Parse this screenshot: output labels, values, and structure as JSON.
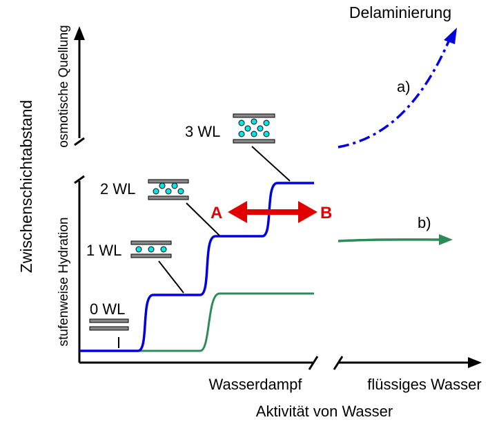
{
  "title_right": "Delaminierung",
  "curve_labels": {
    "a": "a)",
    "b": "b)"
  },
  "layers": {
    "wl3": "3 WL",
    "wl2": "2 WL",
    "wl1": "1 WL",
    "wl0": "0 WL"
  },
  "arrow_labels": {
    "start": "A",
    "end": "B"
  },
  "y_axis": {
    "title": "Zwischenschichtabstand",
    "upper": "osmotische Quellung",
    "lower": "stufenweise Hydration"
  },
  "x_axis": {
    "left": "Wasserdampf",
    "right": "flüssiges Wasser",
    "title": "Aktivität von Wasser"
  }
}
